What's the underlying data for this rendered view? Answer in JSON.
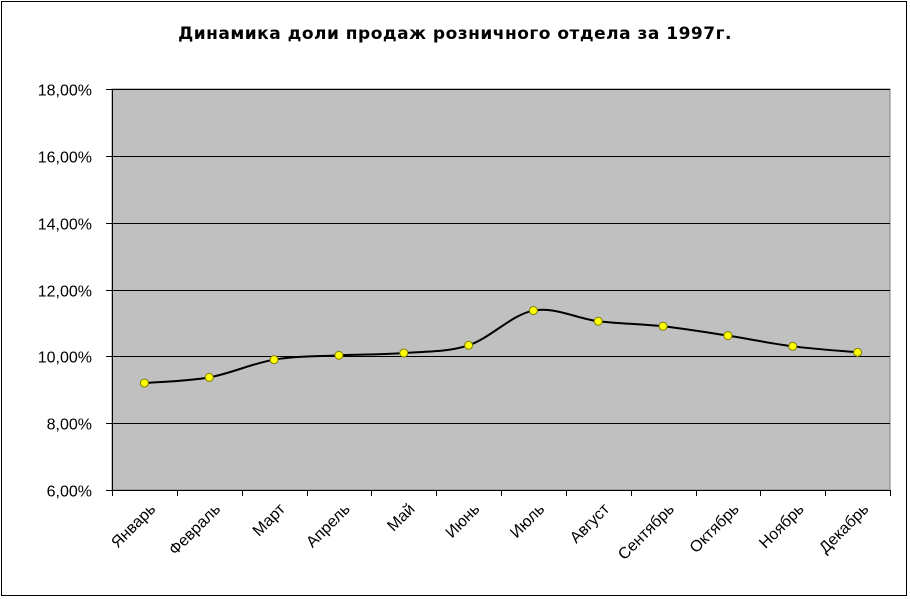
{
  "chart_data": {
    "type": "line",
    "title": "Динамика доли продаж розничного отдела за 1997г.",
    "xlabel": "",
    "ylabel": "",
    "categories": [
      "Январь",
      "Февраль",
      "Март",
      "Апрель",
      "Май",
      "Июнь",
      "Июль",
      "Август",
      "Сентябрь",
      "Октябрь",
      "Ноябрь",
      "Декабрь"
    ],
    "values": [
      9.2,
      9.37,
      9.9,
      10.03,
      10.1,
      10.33,
      11.37,
      11.05,
      10.9,
      10.62,
      10.3,
      10.12
    ],
    "ylim": [
      6,
      18
    ],
    "yticks": [
      "6,00%",
      "8,00%",
      "10,00%",
      "12,00%",
      "14,00%",
      "16,00%",
      "18,00%"
    ],
    "ytick_values": [
      6,
      8,
      10,
      12,
      14,
      16,
      18
    ],
    "grid": true,
    "smooth": true,
    "legend": "none",
    "colors": {
      "plot_background": "#c0c0c0",
      "line": "#000000",
      "marker_fill": "#ffff00",
      "marker_stroke": "#808000",
      "gridline": "#000000"
    }
  }
}
